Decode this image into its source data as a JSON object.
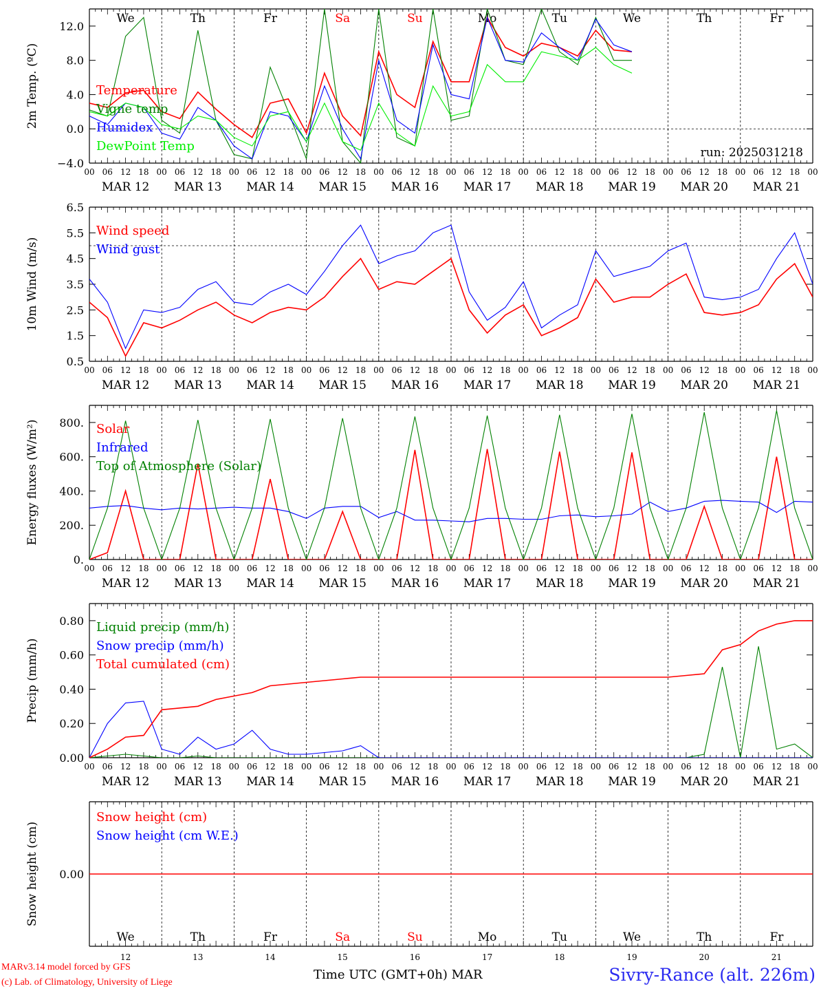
{
  "days": [
    {
      "abbr": "We",
      "num": "12",
      "date": "MAR 12",
      "weekend": false
    },
    {
      "abbr": "Th",
      "num": "13",
      "date": "MAR 13",
      "weekend": false
    },
    {
      "abbr": "Fr",
      "num": "14",
      "date": "MAR 14",
      "weekend": false
    },
    {
      "abbr": "Sa",
      "num": "15",
      "date": "MAR 15",
      "weekend": true
    },
    {
      "abbr": "Su",
      "num": "16",
      "date": "MAR 16",
      "weekend": true
    },
    {
      "abbr": "Mo",
      "num": "17",
      "date": "MAR 17",
      "weekend": false
    },
    {
      "abbr": "Tu",
      "num": "18",
      "date": "MAR 18",
      "weekend": false
    },
    {
      "abbr": "We",
      "num": "19",
      "date": "MAR 19",
      "weekend": false
    },
    {
      "abbr": "Th",
      "num": "20",
      "date": "MAR 20",
      "weekend": false
    },
    {
      "abbr": "Fr",
      "num": "21",
      "date": "MAR 21",
      "weekend": false
    }
  ],
  "hour_ticks": [
    "00",
    "06",
    "12",
    "18"
  ],
  "last_hour_tick": "00",
  "colors": {
    "red": "#ff0000",
    "green": "#008000",
    "blue": "#0000ff",
    "lightgreen": "#00ee00",
    "weekend": "#ff0000",
    "axis": "#000000"
  },
  "footer": {
    "model_line": "MARv3.14 model forced by GFS",
    "lab_line": "(c) Lab. of Climatology, University of Liege",
    "time_label": "Time UTC (GMT+0h) MAR",
    "station": "Sivry-Rance (alt. 226m)"
  },
  "chart_data": [
    {
      "type": "line",
      "ylabel": "2m Temp. (ºC)",
      "ylim": [
        -4,
        14
      ],
      "yticks": [
        -4,
        0,
        4,
        8,
        12
      ],
      "ytick_labels": [
        "−4.0",
        "0.0",
        "4.0",
        "8.0",
        "12.0"
      ],
      "dashed_y": [
        0
      ],
      "grid": "dashed vertical lines at 00 UTC",
      "legend_placement": "left",
      "annotation": "run: 2025031218",
      "show_day_names": true,
      "x_hours": [
        0,
        6,
        12,
        18,
        24,
        30,
        36,
        42,
        48,
        54,
        60,
        66,
        72,
        78,
        84,
        90,
        96,
        102,
        108,
        114,
        120,
        126,
        132,
        138,
        144,
        150,
        156,
        162,
        168,
        174,
        180,
        186,
        192,
        198,
        204,
        210,
        216,
        222,
        228,
        234,
        240
      ],
      "series": [
        {
          "name": "Temperature",
          "color": "red",
          "values": [
            3.0,
            2.5,
            4.2,
            4.5,
            2.0,
            1.2,
            4.3,
            2.3,
            0.5,
            -1.0,
            3.0,
            3.5,
            -0.5,
            6.5,
            1.5,
            -0.8,
            9.0,
            4.0,
            2.5,
            10.2,
            5.5,
            5.5,
            13.0,
            9.5,
            8.5,
            10.0,
            9.5,
            8.5,
            11.5,
            9.2,
            9.0,
            null,
            null,
            null,
            null,
            null,
            null,
            null,
            null,
            null,
            null
          ]
        },
        {
          "name": "Vigne temp",
          "color": "green",
          "values": [
            2.2,
            1.5,
            10.8,
            13.0,
            1.0,
            -0.5,
            11.5,
            1.0,
            -3.0,
            -3.5,
            7.2,
            2.0,
            -3.5,
            14.0,
            -1.5,
            -4.0,
            14.0,
            -1.0,
            -2.0,
            14.0,
            1.0,
            1.5,
            14.0,
            8.0,
            7.5,
            14.0,
            9.0,
            7.5,
            13.0,
            8.0,
            8.0,
            null,
            null,
            null,
            null,
            null,
            null,
            null,
            null,
            null,
            null
          ]
        },
        {
          "name": "Humidex",
          "color": "blue",
          "values": [
            1.5,
            0.5,
            3.0,
            2.5,
            -0.5,
            -1.2,
            2.5,
            1.0,
            -2.0,
            -3.5,
            2.0,
            1.5,
            -1.5,
            5.0,
            0.0,
            -3.5,
            8.0,
            1.0,
            -0.5,
            9.8,
            4.0,
            3.5,
            13.0,
            8.0,
            7.8,
            11.2,
            9.5,
            8.0,
            12.8,
            9.8,
            9.0,
            null,
            null,
            null,
            null,
            null,
            null,
            null,
            null,
            null,
            null
          ]
        },
        {
          "name": "DewPoint Temp",
          "color": "lightgreen",
          "values": [
            2.0,
            1.5,
            3.0,
            2.5,
            0.5,
            0.0,
            1.5,
            1.0,
            -1.0,
            -2.0,
            1.5,
            2.0,
            -1.5,
            3.0,
            -1.5,
            -2.5,
            3.0,
            -0.5,
            -2.0,
            5.0,
            1.5,
            2.0,
            7.5,
            5.5,
            5.5,
            9.0,
            8.5,
            8.0,
            9.5,
            7.5,
            6.5,
            null,
            null,
            null,
            null,
            null,
            null,
            null,
            null,
            null,
            null
          ]
        }
      ]
    },
    {
      "type": "line",
      "ylabel": "10m Wind (m/s)",
      "ylim": [
        0.5,
        6.5
      ],
      "yticks": [
        0.5,
        1.5,
        2.5,
        3.5,
        4.5,
        5.5,
        6.5
      ],
      "ytick_labels": [
        "0.5",
        "1.5",
        "2.5",
        "3.5",
        "4.5",
        "5.5",
        "6.5"
      ],
      "dashed_y": [
        5.0
      ],
      "grid": "dashed vertical lines at 00 UTC",
      "legend_placement": "left",
      "x_hours": [
        0,
        6,
        12,
        18,
        24,
        30,
        36,
        42,
        48,
        54,
        60,
        66,
        72,
        78,
        84,
        90,
        96,
        102,
        108,
        114,
        120,
        126,
        132,
        138,
        144,
        150,
        156,
        162,
        168,
        174,
        180,
        186,
        192,
        198,
        204,
        210,
        216,
        222,
        228,
        234,
        240
      ],
      "series": [
        {
          "name": "Wind speed",
          "color": "red",
          "values": [
            2.8,
            2.2,
            0.7,
            2.0,
            1.8,
            2.1,
            2.5,
            2.8,
            2.3,
            2.0,
            2.4,
            2.6,
            2.5,
            3.0,
            3.8,
            4.5,
            3.3,
            3.6,
            3.5,
            4.0,
            4.5,
            2.5,
            1.6,
            2.3,
            2.7,
            1.5,
            1.8,
            2.2,
            3.7,
            2.8,
            3.0,
            3.0,
            3.5,
            3.9,
            2.4,
            2.3,
            2.4,
            2.7,
            3.7,
            4.3,
            3.0
          ]
        },
        {
          "name": "Wind gust",
          "color": "blue",
          "values": [
            3.7,
            2.8,
            1.0,
            2.5,
            2.4,
            2.6,
            3.3,
            3.6,
            2.8,
            2.7,
            3.2,
            3.5,
            3.1,
            4.0,
            5.0,
            5.8,
            4.3,
            4.6,
            4.8,
            5.5,
            5.8,
            3.2,
            2.1,
            2.6,
            3.6,
            1.8,
            2.3,
            2.7,
            4.8,
            3.8,
            4.0,
            4.2,
            4.8,
            5.1,
            3.0,
            2.9,
            3.0,
            3.3,
            4.5,
            5.5,
            3.5
          ]
        }
      ]
    },
    {
      "type": "line",
      "ylabel": "Energy fluxes (W/m²)",
      "ylim": [
        0,
        900
      ],
      "yticks": [
        0,
        200,
        400,
        600,
        800
      ],
      "ytick_labels": [
        "0.",
        "200.",
        "400.",
        "600.",
        "800."
      ],
      "grid": "dashed vertical lines at 00 UTC",
      "legend_placement": "left",
      "x_hours": [
        0,
        6,
        12,
        18,
        24,
        30,
        36,
        42,
        48,
        54,
        60,
        66,
        72,
        78,
        84,
        90,
        96,
        102,
        108,
        114,
        120,
        126,
        132,
        138,
        144,
        150,
        156,
        162,
        168,
        174,
        180,
        186,
        192,
        198,
        204,
        210,
        216,
        222,
        228,
        234,
        240
      ],
      "series": [
        {
          "name": "Solar",
          "color": "red",
          "values": [
            0,
            40,
            400,
            0,
            0,
            0,
            560,
            0,
            0,
            0,
            470,
            0,
            0,
            0,
            280,
            0,
            0,
            0,
            640,
            0,
            0,
            0,
            645,
            0,
            0,
            0,
            630,
            0,
            0,
            0,
            625,
            0,
            0,
            0,
            310,
            0,
            0,
            0,
            600,
            0,
            0
          ]
        },
        {
          "name": "Infrared",
          "color": "blue",
          "values": [
            300,
            310,
            315,
            300,
            290,
            300,
            295,
            300,
            305,
            300,
            300,
            280,
            240,
            300,
            310,
            310,
            245,
            280,
            230,
            230,
            225,
            220,
            240,
            240,
            235,
            235,
            255,
            260,
            250,
            255,
            265,
            335,
            280,
            300,
            340,
            345,
            340,
            335,
            275,
            340,
            335
          ]
        },
        {
          "name": "Top of Atmosphere (Solar)",
          "color": "green",
          "values": [
            0,
            300,
            810,
            300,
            0,
            300,
            815,
            300,
            0,
            300,
            820,
            300,
            0,
            300,
            825,
            300,
            0,
            300,
            835,
            300,
            0,
            300,
            840,
            300,
            0,
            300,
            845,
            300,
            0,
            300,
            850,
            300,
            0,
            300,
            860,
            300,
            0,
            300,
            870,
            300,
            0
          ]
        }
      ]
    },
    {
      "type": "line",
      "ylabel": "Precip (mm/h)",
      "ylim": [
        0,
        0.9
      ],
      "yticks": [
        0,
        0.2,
        0.4,
        0.6,
        0.8
      ],
      "ytick_labels": [
        "0.00",
        "0.20",
        "0.40",
        "0.60",
        "0.80"
      ],
      "grid": "dashed vertical lines at 00 UTC",
      "legend_placement": "left",
      "x_hours": [
        0,
        6,
        12,
        18,
        24,
        30,
        36,
        42,
        48,
        54,
        60,
        66,
        72,
        78,
        84,
        90,
        96,
        102,
        108,
        114,
        120,
        126,
        132,
        138,
        144,
        150,
        156,
        162,
        168,
        174,
        180,
        186,
        192,
        198,
        204,
        210,
        216,
        222,
        228,
        234,
        240
      ],
      "series": [
        {
          "name": "Liquid precip (mm/h)",
          "color": "green",
          "values": [
            0,
            0.01,
            0.02,
            0.01,
            0,
            0,
            0.01,
            0,
            0,
            0,
            0,
            0,
            0,
            0,
            0,
            0,
            0,
            0,
            0,
            0,
            0,
            0,
            0,
            0,
            0,
            0,
            0,
            0,
            0,
            0,
            0,
            0,
            0,
            0,
            0.02,
            0.53,
            0,
            0.65,
            0.05,
            0.08,
            0
          ]
        },
        {
          "name": "Snow precip (mm/h)",
          "color": "blue",
          "values": [
            0,
            0.2,
            0.32,
            0.33,
            0.05,
            0.02,
            0.12,
            0.05,
            0.08,
            0.16,
            0.05,
            0.02,
            0.02,
            0.03,
            0.04,
            0.07,
            0,
            0,
            0,
            0,
            0,
            0,
            0,
            0,
            0,
            0,
            0,
            0,
            0,
            0,
            0,
            0,
            0,
            0,
            0,
            0,
            0,
            0,
            0,
            0,
            0
          ]
        },
        {
          "name": "Total cumulated (cm)",
          "color": "red",
          "values": [
            0.0,
            0.05,
            0.12,
            0.13,
            0.28,
            0.29,
            0.3,
            0.34,
            0.36,
            0.38,
            0.42,
            0.43,
            0.44,
            0.45,
            0.46,
            0.47,
            0.47,
            0.47,
            0.47,
            0.47,
            0.47,
            0.47,
            0.47,
            0.47,
            0.47,
            0.47,
            0.47,
            0.47,
            0.47,
            0.47,
            0.47,
            0.47,
            0.47,
            0.48,
            0.49,
            0.63,
            0.66,
            0.74,
            0.78,
            0.8,
            0.8
          ]
        }
      ]
    },
    {
      "type": "line",
      "ylabel": "Snow height (cm)",
      "ylim": [
        -1,
        1
      ],
      "yticks": [
        0
      ],
      "ytick_labels": [
        "0.00"
      ],
      "grid": "dashed vertical lines at 00 UTC",
      "legend_placement": "left",
      "show_day_names": true,
      "x_hours": [
        0,
        240
      ],
      "series": [
        {
          "name": "Snow height (cm)",
          "color": "red",
          "values": [
            0,
            0
          ]
        },
        {
          "name": "Snow height (cm W.E.)",
          "color": "blue",
          "values": [
            null,
            null
          ]
        }
      ]
    }
  ]
}
